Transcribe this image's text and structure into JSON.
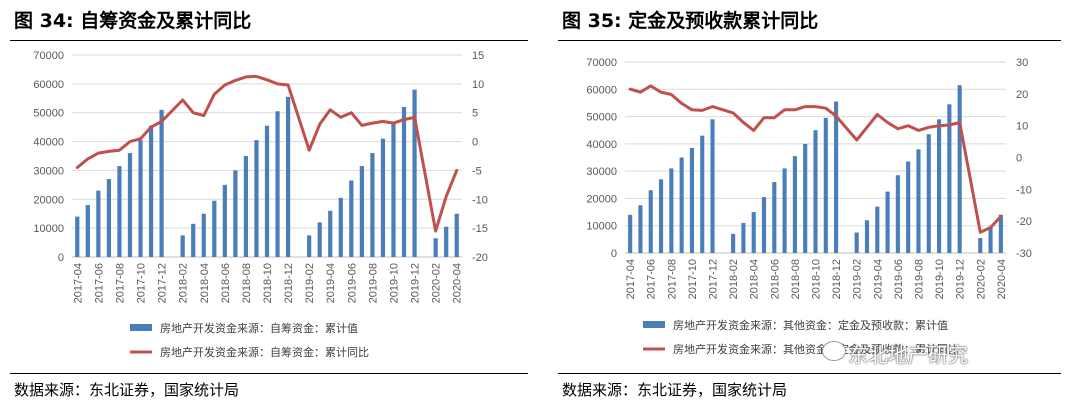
{
  "left": {
    "title": "图 34:  自筹资金及累计同比",
    "source": "数据来源：东北证券，国家统计局",
    "chart_data": {
      "type": "bar+line",
      "categories": [
        "2017-04",
        "2017-05",
        "2017-06",
        "2017-07",
        "2017-08",
        "2017-09",
        "2017-10",
        "2017-11",
        "2017-12",
        "2018-01",
        "2018-02",
        "2018-03",
        "2018-04",
        "2018-05",
        "2018-06",
        "2018-07",
        "2018-08",
        "2018-09",
        "2018-10",
        "2018-11",
        "2018-12",
        "2019-01",
        "2019-02",
        "2019-03",
        "2019-04",
        "2019-05",
        "2019-06",
        "2019-07",
        "2019-08",
        "2019-09",
        "2019-10",
        "2019-11",
        "2019-12",
        "2020-01",
        "2020-02",
        "2020-03",
        "2020-04"
      ],
      "tick_labels": [
        "2017-04",
        "2017-06",
        "2017-08",
        "2017-10",
        "2017-12",
        "2018-02",
        "2018-04",
        "2018-06",
        "2018-08",
        "2018-10",
        "2018-12",
        "2019-02",
        "2019-04",
        "2019-06",
        "2019-08",
        "2019-10",
        "2019-12",
        "2020-02",
        "2020-04"
      ],
      "series": [
        {
          "name": "房地产开发资金来源：自筹资金：累计值",
          "type": "bar",
          "axis": "left",
          "color": "#4a7ebb",
          "values": [
            14000,
            18000,
            23000,
            27000,
            31500,
            36000,
            40500,
            45500,
            51000,
            null,
            7500,
            11500,
            15000,
            19500,
            25000,
            30000,
            35000,
            40500,
            45500,
            50500,
            55500,
            null,
            7500,
            12000,
            16000,
            20500,
            26500,
            31500,
            36000,
            41000,
            46500,
            52000,
            58000,
            null,
            6500,
            10500,
            15000
          ]
        },
        {
          "name": "房地产开发资金来源：自筹资金：累计同比",
          "type": "line",
          "axis": "right",
          "color": "#c0504d",
          "values": [
            -4.5,
            -3,
            -2,
            -1.7,
            -1.5,
            0,
            0.5,
            2.5,
            3.5,
            null,
            7.2,
            5,
            4.5,
            8.2,
            9.8,
            10.6,
            11.2,
            11.3,
            10.7,
            10,
            9.8,
            null,
            -1.5,
            3,
            5.5,
            4.2,
            5,
            2.8,
            3.2,
            3.5,
            3.2,
            3.8,
            4.2,
            null,
            -15.5,
            -9.5,
            -5
          ]
        }
      ],
      "y_left": {
        "min": 0,
        "max": 70000,
        "ticks": [
          0,
          10000,
          20000,
          30000,
          40000,
          50000,
          60000,
          70000
        ]
      },
      "y_right": {
        "min": -20,
        "max": 15,
        "ticks": [
          -20,
          -15,
          -10,
          -5,
          0,
          5,
          10,
          15
        ]
      },
      "legend_position": "bottom"
    }
  },
  "right": {
    "title": "图 35:  定金及预收款累计同比",
    "source": "数据来源：东北证券，国家统计局",
    "watermark": "东北地产研究",
    "chart_data": {
      "type": "bar+line",
      "categories": [
        "2017-04",
        "2017-05",
        "2017-06",
        "2017-07",
        "2017-08",
        "2017-09",
        "2017-10",
        "2017-11",
        "2017-12",
        "2018-01",
        "2018-02",
        "2018-03",
        "2018-04",
        "2018-05",
        "2018-06",
        "2018-07",
        "2018-08",
        "2018-09",
        "2018-10",
        "2018-11",
        "2018-12",
        "2019-01",
        "2019-02",
        "2019-03",
        "2019-04",
        "2019-05",
        "2019-06",
        "2019-07",
        "2019-08",
        "2019-09",
        "2019-10",
        "2019-11",
        "2019-12",
        "2020-01",
        "2020-02",
        "2020-03",
        "2020-04"
      ],
      "tick_labels": [
        "2017-04",
        "2017-06",
        "2017-08",
        "2017-10",
        "2017-12",
        "2018-02",
        "2018-04",
        "2018-06",
        "2018-08",
        "2018-10",
        "2018-12",
        "2019-02",
        "2019-04",
        "2019-06",
        "2019-08",
        "2019-10",
        "2019-12",
        "2020-02",
        "2020-04"
      ],
      "series": [
        {
          "name": "房地产开发资金来源：其他资金：定金及预收款：累计值",
          "type": "bar",
          "axis": "left",
          "color": "#4a7ebb",
          "values": [
            14000,
            17500,
            23000,
            27000,
            31000,
            35000,
            38500,
            43000,
            49000,
            null,
            7000,
            11000,
            15000,
            20500,
            26000,
            31000,
            35500,
            40000,
            45000,
            49500,
            55500,
            null,
            7500,
            12000,
            17000,
            22500,
            28500,
            33500,
            38000,
            43500,
            49000,
            54500,
            61500,
            null,
            5500,
            9500,
            14000
          ]
        },
        {
          "name": "房地产开发资金来源：其他资金：定金及预收款：累计同比",
          "type": "line",
          "axis": "right",
          "color": "#c0504d",
          "values": [
            21.5,
            20.5,
            22.5,
            20.5,
            19.8,
            17,
            15,
            14.8,
            16,
            null,
            14,
            11,
            8.5,
            12.5,
            12.5,
            15,
            15,
            16,
            16,
            15.5,
            13,
            null,
            5.5,
            9.5,
            13.5,
            11,
            9,
            10,
            8.5,
            9.5,
            10,
            10.2,
            11,
            null,
            -23.5,
            -22,
            -18.5
          ]
        }
      ],
      "y_left": {
        "min": 0,
        "max": 70000,
        "ticks": [
          0,
          10000,
          20000,
          30000,
          40000,
          50000,
          60000,
          70000
        ]
      },
      "y_right": {
        "min": -30,
        "max": 30,
        "ticks": [
          -30,
          -20,
          -10,
          0,
          10,
          20,
          30
        ]
      },
      "legend_position": "bottom"
    }
  }
}
